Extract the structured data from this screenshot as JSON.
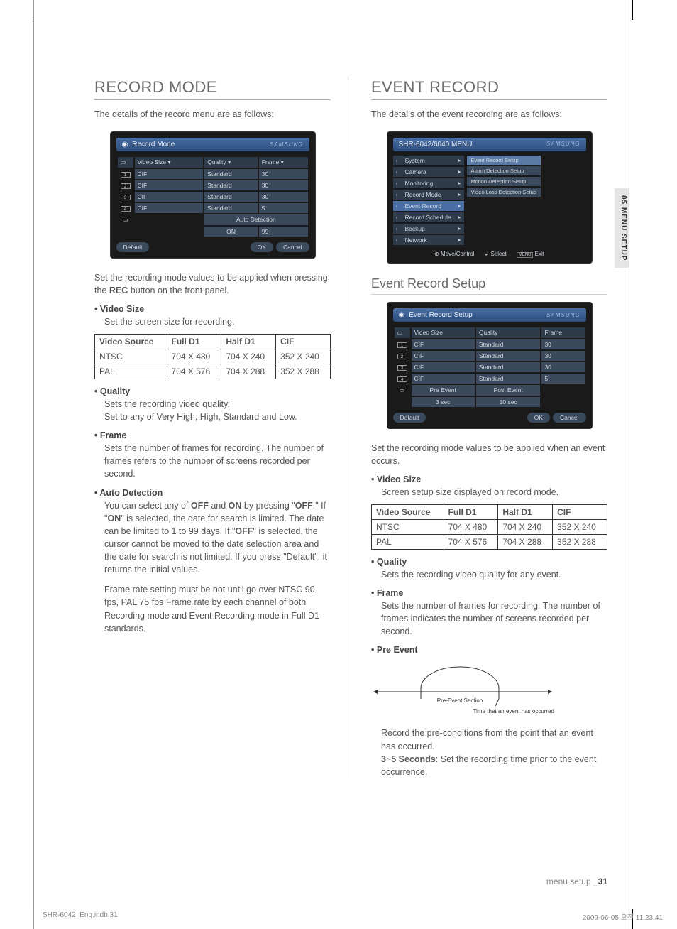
{
  "sideTab": "05 MENU SETUP",
  "left": {
    "heading": "RECORD MODE",
    "intro": "The details of the record menu are as follows:",
    "panel": {
      "title": "Record Mode",
      "logo": "SAMSUNG",
      "hdr": {
        "c1": "Video Size ▾",
        "c2": "Quality ▾",
        "c3": "Frame ▾"
      },
      "rows": [
        {
          "ch": "1",
          "size": "CIF",
          "qual": "Standard",
          "frame": "30"
        },
        {
          "ch": "2",
          "size": "CIF",
          "qual": "Standard",
          "frame": "30"
        },
        {
          "ch": "3",
          "size": "CIF",
          "qual": "Standard",
          "frame": "30"
        },
        {
          "ch": "4",
          "size": "CIF",
          "qual": "Standard",
          "frame": "5"
        }
      ],
      "autoDet": "Auto Detection",
      "on": "ON",
      "onVal": "99",
      "defaultBtn": "Default",
      "okBtn": "OK",
      "cancelBtn": "Cancel"
    },
    "setText": "Set the recording mode values to be applied when pressing the ",
    "setBold": "REC",
    "setText2": " button on the front panel.",
    "videoSize": {
      "title": "Video Size",
      "text": "Set the screen size for recording."
    },
    "table": {
      "h": {
        "c1": "Video Source",
        "c2": "Full D1",
        "c3": "Half D1",
        "c4": "CIF"
      },
      "r1": {
        "c1": "NTSC",
        "c2": "704 X 480",
        "c3": "704 X 240",
        "c4": "352 X 240"
      },
      "r2": {
        "c1": "PAL",
        "c2": "704 X 576",
        "c3": "704 X 288",
        "c4": "352 X 288"
      }
    },
    "quality": {
      "title": "Quality",
      "l1": "Sets the recording video quality.",
      "l2": "Set to any of Very High, High, Standard and Low."
    },
    "frame": {
      "title": "Frame",
      "text": "Sets the number of frames for recording. The number of frames refers to the number of screens recorded per second."
    },
    "autoDet": {
      "title": "Auto Detection",
      "p1a": "You can select any of ",
      "p1b": "OFF",
      "p1c": " and ",
      "p1d": "ON",
      "p1e": " by pressing \"",
      "p1f": "OFF",
      "p1g": ".\" If \"",
      "p1h": "ON",
      "p1i": "\" is selected, the date for search is limited. The date can be limited to 1 to 99 days. If \"",
      "p1j": "OFF",
      "p1k": "\" is selected, the cursor cannot be moved to the date selection area and the date for search is not limited. If you press \"Default\", it returns the initial values.",
      "p2": "Frame rate setting must be not until go over NTSC 90 fps, PAL 75 fps Frame rate by each channel of both Recording mode and Event Recording mode in Full D1 standards."
    }
  },
  "right": {
    "heading": "EVENT RECORD",
    "intro": "The details of the event recording are as follows:",
    "menu": {
      "title": "SHR-6042/6040 MENU",
      "logo": "SAMSUNG",
      "items": [
        "System",
        "Camera",
        "Monitoring",
        "Record Mode",
        "Event Record",
        "Record Schedule",
        "Backup",
        "Network"
      ],
      "selIndex": 4,
      "sub": [
        "Event Record Setup",
        "Alarm Detection Setup",
        "Motion Detection Setup",
        "Video Loss Detection Setup"
      ],
      "subSelIndex": 0,
      "foot": {
        "move": "Move/Control",
        "select": "Select",
        "exit": "Exit",
        "exitKey": "MENU"
      }
    },
    "subHeading": "Event Record Setup",
    "panel": {
      "title": "Event Record Setup",
      "logo": "SAMSUNG",
      "hdr": {
        "c1": "Video Size",
        "c2": "Quality",
        "c3": "Frame"
      },
      "rows": [
        {
          "ch": "1",
          "size": "CIF",
          "qual": "Standard",
          "frame": "30"
        },
        {
          "ch": "2",
          "size": "CIF",
          "qual": "Standard",
          "frame": "30"
        },
        {
          "ch": "3",
          "size": "CIF",
          "qual": "Standard",
          "frame": "30"
        },
        {
          "ch": "4",
          "size": "CIF",
          "qual": "Standard",
          "frame": "5"
        }
      ],
      "pre": {
        "h1": "Pre Event",
        "h2": "Post Event",
        "v1": "3 sec",
        "v2": "10 sec"
      },
      "defaultBtn": "Default",
      "okBtn": "OK",
      "cancelBtn": "Cancel"
    },
    "setText": "Set the recording mode values to be applied when an event occurs.",
    "videoSize": {
      "title": "Video Size",
      "text": "Screen setup size displayed on record mode."
    },
    "table": {
      "h": {
        "c1": "Video Source",
        "c2": "Full D1",
        "c3": "Half D1",
        "c4": "CIF"
      },
      "r1": {
        "c1": "NTSC",
        "c2": "704 X 480",
        "c3": "704 X 240",
        "c4": "352 X 240"
      },
      "r2": {
        "c1": "PAL",
        "c2": "704 X 576",
        "c3": "704 X 288",
        "c4": "352 X 288"
      }
    },
    "quality": {
      "title": "Quality",
      "text": "Sets the recording video quality for any event."
    },
    "frame": {
      "title": "Frame",
      "text": "Sets the number of frames for recording. The number of frames indicates the number of screens recorded per second."
    },
    "preEvent": {
      "title": "Pre Event",
      "diagLabel": "Pre-Event Section",
      "diagTime": "Time that an event has occurred",
      "p1": "Record the pre-conditions from the point that an event has occurred.",
      "p2a": "3~5 Seconds",
      "p2b": ": Set the recording time prior to the event occurrence."
    }
  },
  "footer": {
    "label": "menu setup _",
    "num": "31"
  },
  "printFoot": {
    "left": "SHR-6042_Eng.indb   31",
    "right": "2009-06-05   오전 11:23:41"
  }
}
